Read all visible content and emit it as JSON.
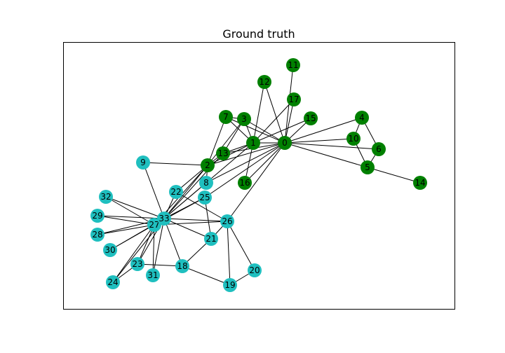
{
  "title": "Ground truth",
  "colors": {
    "green": "#008000",
    "cyan": "#1fbfbf",
    "edge": "#000000"
  },
  "nodes": [
    {
      "id": "0",
      "group": "green"
    },
    {
      "id": "1",
      "group": "green"
    },
    {
      "id": "2",
      "group": "green"
    },
    {
      "id": "3",
      "group": "green"
    },
    {
      "id": "4",
      "group": "green"
    },
    {
      "id": "5",
      "group": "green"
    },
    {
      "id": "6",
      "group": "green"
    },
    {
      "id": "7",
      "group": "green"
    },
    {
      "id": "8",
      "group": "cyan"
    },
    {
      "id": "9",
      "group": "cyan"
    },
    {
      "id": "10",
      "group": "green"
    },
    {
      "id": "11",
      "group": "green"
    },
    {
      "id": "12",
      "group": "green"
    },
    {
      "id": "13",
      "group": "green"
    },
    {
      "id": "14",
      "group": "green"
    },
    {
      "id": "15",
      "group": "green"
    },
    {
      "id": "16",
      "group": "green"
    },
    {
      "id": "17",
      "group": "green"
    },
    {
      "id": "18",
      "group": "cyan"
    },
    {
      "id": "19",
      "group": "cyan"
    },
    {
      "id": "20",
      "group": "cyan"
    },
    {
      "id": "21",
      "group": "cyan"
    },
    {
      "id": "22",
      "group": "cyan"
    },
    {
      "id": "23",
      "group": "cyan"
    },
    {
      "id": "24",
      "group": "cyan"
    },
    {
      "id": "25",
      "group": "cyan"
    },
    {
      "id": "26",
      "group": "cyan"
    },
    {
      "id": "27",
      "group": "cyan"
    },
    {
      "id": "28",
      "group": "cyan"
    },
    {
      "id": "29",
      "group": "cyan"
    },
    {
      "id": "30",
      "group": "cyan"
    },
    {
      "id": "31",
      "group": "cyan"
    },
    {
      "id": "32",
      "group": "cyan"
    },
    {
      "id": "33",
      "group": "cyan"
    }
  ],
  "edges": [
    [
      "0",
      "1"
    ],
    [
      "0",
      "3"
    ],
    [
      "0",
      "2"
    ],
    [
      "0",
      "7"
    ],
    [
      "0",
      "11"
    ],
    [
      "0",
      "12"
    ],
    [
      "0",
      "17"
    ],
    [
      "0",
      "15"
    ],
    [
      "0",
      "10"
    ],
    [
      "0",
      "4"
    ],
    [
      "0",
      "6"
    ],
    [
      "0",
      "5"
    ],
    [
      "0",
      "13"
    ],
    [
      "0",
      "16"
    ],
    [
      "0",
      "8"
    ],
    [
      "0",
      "25"
    ],
    [
      "0",
      "26"
    ],
    [
      "1",
      "3"
    ],
    [
      "1",
      "7"
    ],
    [
      "1",
      "2"
    ],
    [
      "1",
      "13"
    ],
    [
      "1",
      "12"
    ],
    [
      "1",
      "17"
    ],
    [
      "1",
      "15"
    ],
    [
      "1",
      "16"
    ],
    [
      "1",
      "33"
    ],
    [
      "2",
      "3"
    ],
    [
      "2",
      "7"
    ],
    [
      "2",
      "13"
    ],
    [
      "2",
      "9"
    ],
    [
      "2",
      "8"
    ],
    [
      "2",
      "22"
    ],
    [
      "2",
      "33"
    ],
    [
      "2",
      "27"
    ],
    [
      "3",
      "7"
    ],
    [
      "3",
      "13"
    ],
    [
      "4",
      "6"
    ],
    [
      "4",
      "10"
    ],
    [
      "5",
      "6"
    ],
    [
      "5",
      "10"
    ],
    [
      "5",
      "14"
    ],
    [
      "8",
      "33"
    ],
    [
      "9",
      "33"
    ],
    [
      "13",
      "33"
    ],
    [
      "18",
      "33"
    ],
    [
      "18",
      "19"
    ],
    [
      "18",
      "21"
    ],
    [
      "19",
      "26"
    ],
    [
      "19",
      "20"
    ],
    [
      "20",
      "26"
    ],
    [
      "21",
      "26"
    ],
    [
      "21",
      "33"
    ],
    [
      "22",
      "33"
    ],
    [
      "22",
      "26"
    ],
    [
      "23",
      "33"
    ],
    [
      "23",
      "27"
    ],
    [
      "23",
      "18"
    ],
    [
      "23",
      "24"
    ],
    [
      "24",
      "33"
    ],
    [
      "25",
      "33"
    ],
    [
      "25",
      "27"
    ],
    [
      "25",
      "21"
    ],
    [
      "26",
      "33"
    ],
    [
      "26",
      "27"
    ],
    [
      "27",
      "33"
    ],
    [
      "27",
      "32"
    ],
    [
      "27",
      "29"
    ],
    [
      "27",
      "28"
    ],
    [
      "27",
      "30"
    ],
    [
      "27",
      "24"
    ],
    [
      "27",
      "31"
    ],
    [
      "28",
      "33"
    ],
    [
      "29",
      "33"
    ],
    [
      "30",
      "33"
    ],
    [
      "31",
      "33"
    ],
    [
      "32",
      "33"
    ]
  ]
}
